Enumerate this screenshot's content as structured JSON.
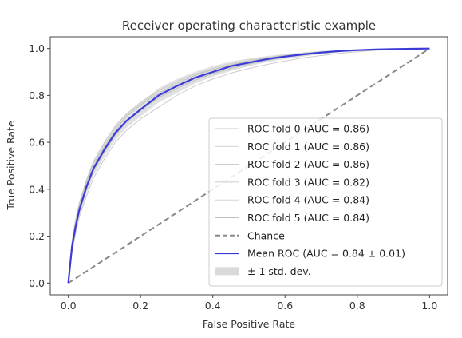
{
  "chart_data": {
    "type": "line",
    "title": "Receiver operating characteristic example",
    "xlabel": "False Positive Rate",
    "ylabel": "True Positive Rate",
    "xlim": [
      -0.05,
      1.05
    ],
    "ylim": [
      -0.05,
      1.05
    ],
    "xticks": [
      "0.0",
      "0.2",
      "0.4",
      "0.6",
      "0.8",
      "1.0"
    ],
    "yticks": [
      "0.0",
      "0.2",
      "0.4",
      "0.6",
      "0.8",
      "1.0"
    ],
    "xtick_values": [
      0.0,
      0.2,
      0.4,
      0.6,
      0.8,
      1.0
    ],
    "ytick_values": [
      0.0,
      0.2,
      0.4,
      0.6,
      0.8,
      1.0
    ],
    "grid": false,
    "legend_position": "lower-right",
    "mean_x": [
      0.0,
      0.01,
      0.02,
      0.03,
      0.05,
      0.07,
      0.1,
      0.13,
      0.16,
      0.2,
      0.25,
      0.3,
      0.35,
      0.4,
      0.45,
      0.5,
      0.55,
      0.6,
      0.65,
      0.7,
      0.75,
      0.8,
      0.85,
      0.9,
      0.95,
      1.0
    ],
    "series": [
      {
        "name": "ROC fold 0 (AUC = 0.86)",
        "color": "#c8c8c8",
        "kind": "fold",
        "values": [
          0.0,
          0.18,
          0.27,
          0.34,
          0.44,
          0.52,
          0.6,
          0.67,
          0.72,
          0.77,
          0.82,
          0.86,
          0.89,
          0.91,
          0.93,
          0.95,
          0.96,
          0.97,
          0.98,
          0.985,
          0.99,
          0.993,
          0.996,
          0.998,
          0.999,
          1.0
        ]
      },
      {
        "name": "ROC fold 1 (AUC = 0.86)",
        "color": "#d2d2d2",
        "kind": "fold",
        "values": [
          0.0,
          0.16,
          0.25,
          0.33,
          0.43,
          0.51,
          0.59,
          0.66,
          0.71,
          0.76,
          0.82,
          0.86,
          0.89,
          0.915,
          0.935,
          0.95,
          0.962,
          0.972,
          0.98,
          0.986,
          0.99,
          0.994,
          0.996,
          0.998,
          0.999,
          1.0
        ]
      },
      {
        "name": "ROC fold 2 (AUC = 0.86)",
        "color": "#c4c4c4",
        "kind": "fold",
        "values": [
          0.0,
          0.17,
          0.26,
          0.33,
          0.43,
          0.51,
          0.58,
          0.65,
          0.71,
          0.76,
          0.81,
          0.85,
          0.885,
          0.91,
          0.93,
          0.947,
          0.96,
          0.97,
          0.978,
          0.985,
          0.99,
          0.993,
          0.996,
          0.998,
          0.999,
          1.0
        ]
      },
      {
        "name": "ROC fold 3 (AUC = 0.82)",
        "color": "#cccccc",
        "kind": "fold",
        "values": [
          0.0,
          0.13,
          0.21,
          0.28,
          0.37,
          0.45,
          0.53,
          0.6,
          0.65,
          0.7,
          0.75,
          0.8,
          0.84,
          0.87,
          0.895,
          0.915,
          0.932,
          0.947,
          0.96,
          0.97,
          0.979,
          0.986,
          0.992,
          0.996,
          0.998,
          1.0
        ]
      },
      {
        "name": "ROC fold 4 (AUC = 0.84)",
        "color": "#d6d6d6",
        "kind": "fold",
        "values": [
          0.0,
          0.15,
          0.23,
          0.31,
          0.4,
          0.48,
          0.56,
          0.63,
          0.68,
          0.73,
          0.79,
          0.83,
          0.865,
          0.895,
          0.918,
          0.937,
          0.952,
          0.964,
          0.974,
          0.982,
          0.988,
          0.992,
          0.995,
          0.998,
          0.999,
          1.0
        ]
      },
      {
        "name": "ROC fold 5 (AUC = 0.84)",
        "color": "#c0c0c0",
        "kind": "fold",
        "values": [
          0.0,
          0.14,
          0.23,
          0.3,
          0.4,
          0.48,
          0.56,
          0.63,
          0.69,
          0.74,
          0.79,
          0.83,
          0.865,
          0.893,
          0.915,
          0.934,
          0.95,
          0.962,
          0.972,
          0.98,
          0.987,
          0.992,
          0.995,
          0.998,
          0.999,
          1.0
        ]
      },
      {
        "name": "Chance",
        "color": "#888888",
        "kind": "chance",
        "x": [
          0.0,
          1.0
        ],
        "values": [
          0.0,
          1.0
        ]
      },
      {
        "name": "Mean ROC (AUC = 0.84 ± 0.01)",
        "color": "#3b3bd6",
        "kind": "mean",
        "values": [
          0.0,
          0.155,
          0.24,
          0.31,
          0.41,
          0.49,
          0.57,
          0.64,
          0.69,
          0.74,
          0.8,
          0.84,
          0.875,
          0.9,
          0.925,
          0.94,
          0.955,
          0.966,
          0.975,
          0.983,
          0.989,
          0.993,
          0.996,
          0.998,
          0.999,
          1.0
        ]
      },
      {
        "name": "± 1 std. dev.",
        "color": "#d9d9d9",
        "kind": "band",
        "lower": [
          0.0,
          0.13,
          0.21,
          0.28,
          0.38,
          0.46,
          0.54,
          0.61,
          0.66,
          0.71,
          0.77,
          0.81,
          0.85,
          0.88,
          0.905,
          0.925,
          0.942,
          0.955,
          0.966,
          0.976,
          0.984,
          0.99,
          0.994,
          0.997,
          0.999,
          1.0
        ],
        "upper": [
          0.0,
          0.18,
          0.27,
          0.34,
          0.44,
          0.52,
          0.6,
          0.67,
          0.72,
          0.77,
          0.83,
          0.87,
          0.9,
          0.925,
          0.945,
          0.957,
          0.968,
          0.977,
          0.984,
          0.99,
          0.994,
          0.996,
          0.998,
          0.999,
          1.0,
          1.0
        ]
      }
    ]
  }
}
